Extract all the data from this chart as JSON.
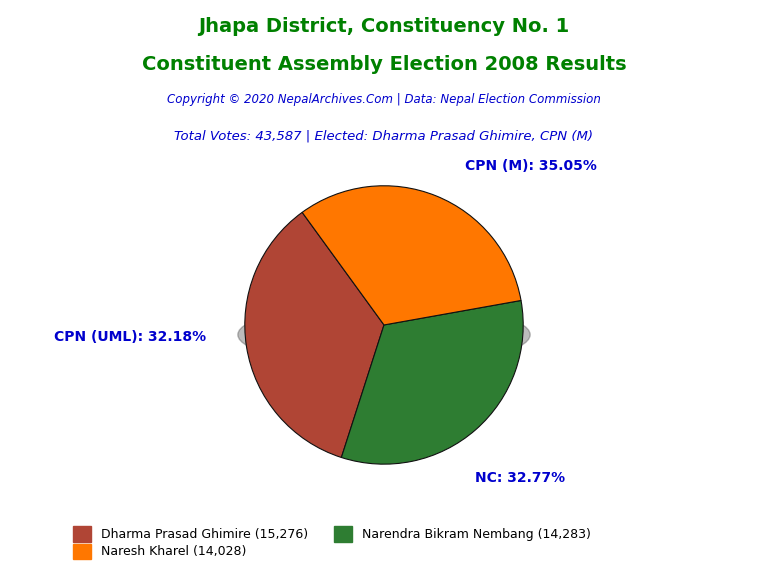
{
  "title_line1": "Jhapa District, Constituency No. 1",
  "title_line2": "Constituent Assembly Election 2008 Results",
  "title_color": "#008000",
  "copyright_text": "Copyright © 2020 NepalArchives.Com | Data: Nepal Election Commission",
  "copyright_color": "#0000CD",
  "info_text": "Total Votes: 43,587 | Elected: Dharma Prasad Ghimire, CPN (M)",
  "info_color": "#0000CD",
  "slices": [
    {
      "label": "CPN (M)",
      "value": 15276,
      "pct": 35.05,
      "color": "#B04535"
    },
    {
      "label": "NC",
      "value": 14283,
      "pct": 32.77,
      "color": "#2E7D32"
    },
    {
      "label": "CPN (UML)",
      "value": 14028,
      "pct": 32.18,
      "color": "#FF7700"
    }
  ],
  "legend_entries": [
    {
      "label": "Dharma Prasad Ghimire (15,276)",
      "color": "#B04535"
    },
    {
      "label": "Narendra Bikram Nembang (14,283)",
      "color": "#2E7D32"
    },
    {
      "label": "Naresh Kharel (14,028)",
      "color": "#FF7700"
    }
  ],
  "label_color": "#0000CD",
  "background_color": "#FFFFFF",
  "startangle": 126
}
